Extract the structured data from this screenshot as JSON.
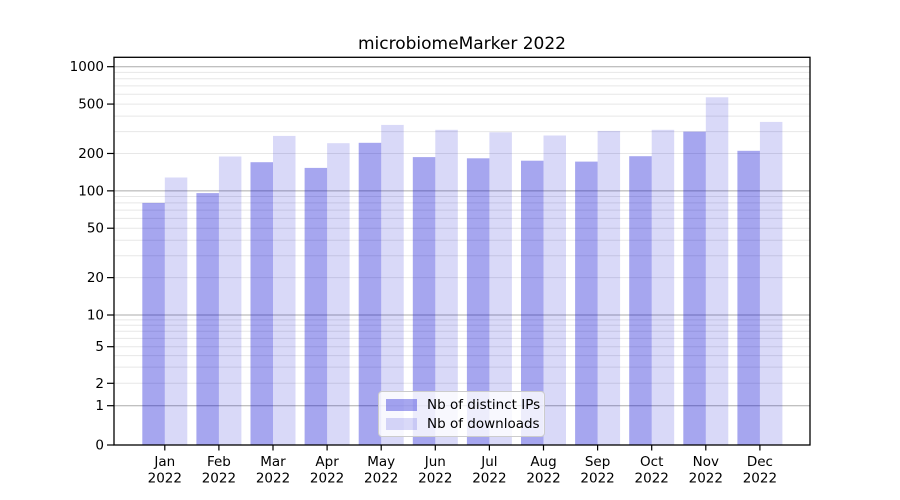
{
  "chart_data": {
    "type": "bar",
    "title": "microbiomeMarker 2022",
    "categories": [
      "Jan",
      "Feb",
      "Mar",
      "Apr",
      "May",
      "Jun",
      "Jul",
      "Aug",
      "Sep",
      "Oct",
      "Nov",
      "Dec"
    ],
    "category_year": "2022",
    "series": [
      {
        "name": "Nb of distinct IPs",
        "color": "rgba(0,0,210,0.35)",
        "values": [
          80,
          96,
          170,
          153,
          244,
          187,
          183,
          175,
          172,
          190,
          300,
          210
        ]
      },
      {
        "name": "Nb of downloads",
        "color": "rgba(0,0,210,0.15)",
        "values": [
          128,
          189,
          277,
          242,
          340,
          310,
          296,
          279,
          304,
          310,
          567,
          359
        ]
      }
    ],
    "xlabel": "",
    "ylabel": "",
    "yscale": "symlog",
    "yticks": [
      0,
      1,
      2,
      5,
      10,
      20,
      50,
      100,
      200,
      500,
      1000
    ],
    "ylim": [
      0,
      1000
    ],
    "grid": {
      "orientation": "horizontal",
      "major_color": "#ababab",
      "minor_color": "#e7e7e7",
      "major_at": [
        1,
        10,
        100,
        1000
      ]
    },
    "legend": {
      "position": "inside-bottom-center",
      "border_color": "#cccccc",
      "background": "rgba(255,255,255,0.8)"
    },
    "axis_color": "#000000",
    "text_color": "#000000"
  }
}
